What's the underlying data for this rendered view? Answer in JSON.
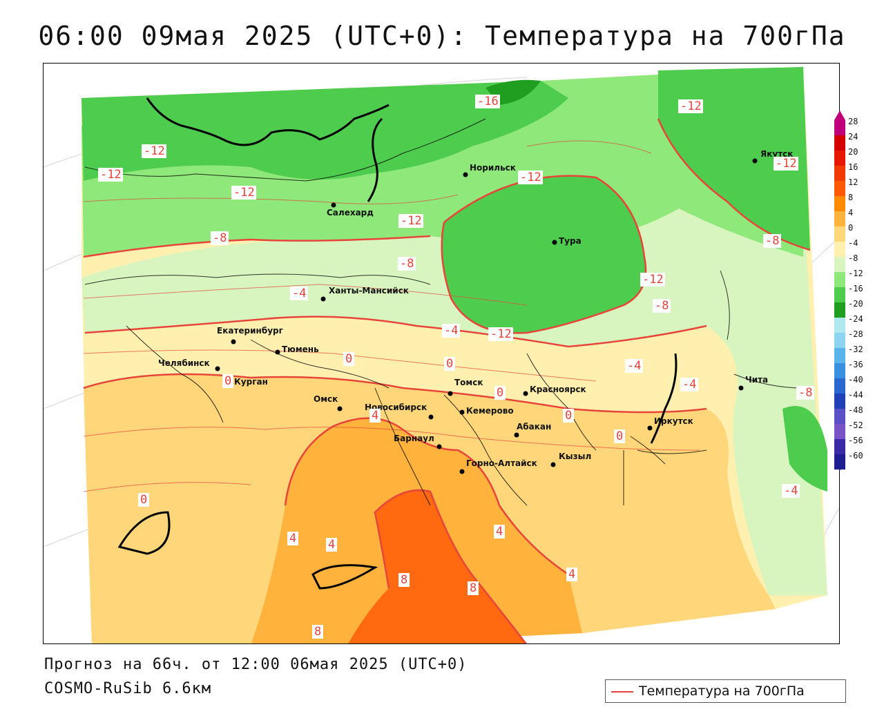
{
  "title": "06:00 09мая 2025 (UTC+0): Температура на 700гПа",
  "forecast_line": "Прогноз на 66ч. от 12:00 06мая 2025 (UTC+0)",
  "model_line": "COSMO-RuSib 6.6км",
  "legend": {
    "label": "Температура на 700гПа",
    "color": "#e8443a"
  },
  "colorbar": {
    "labels": [
      "28",
      "24",
      "20",
      "16",
      "12",
      "8",
      "4",
      "0",
      "-4",
      "-8",
      "-12",
      "-16",
      "-20",
      "-24",
      "-28",
      "-32",
      "-36",
      "-40",
      "-44",
      "-48",
      "-52",
      "-56",
      "-60"
    ],
    "colors": [
      "#c0007a",
      "#d40000",
      "#e61800",
      "#f23a00",
      "#ff5a00",
      "#ff8a00",
      "#ffb23c",
      "#ffd77a",
      "#fff0b0",
      "#d8f5c0",
      "#8ee87a",
      "#4ecc4e",
      "#1f9e1f",
      "#b0e8f0",
      "#8cd4f0",
      "#5ab4ec",
      "#3a90e0",
      "#2a68d0",
      "#2040b8",
      "#5a50c8",
      "#7a52c8",
      "#3a2aa8",
      "#1e1e90"
    ]
  },
  "cities": [
    {
      "name": "Салехард"
    },
    {
      "name": "Норильск"
    },
    {
      "name": "Тура"
    },
    {
      "name": "Якутск"
    },
    {
      "name": "Ханты-Мансийск"
    },
    {
      "name": "Екатеринбург"
    },
    {
      "name": "Тюмень"
    },
    {
      "name": "Челябинск"
    },
    {
      "name": "Курган"
    },
    {
      "name": "Омск"
    },
    {
      "name": "Новосибирск"
    },
    {
      "name": "Томск"
    },
    {
      "name": "Кемерово"
    },
    {
      "name": "Красноярск"
    },
    {
      "name": "Абакан"
    },
    {
      "name": "Барнаул"
    },
    {
      "name": "Горно-Алтайск"
    },
    {
      "name": "Кызыл"
    },
    {
      "name": "Иркутск"
    },
    {
      "name": "Чита"
    }
  ],
  "isotherm_labels": [
    "-16",
    "-12",
    "-12",
    "-12",
    "-12",
    "-12",
    "-12",
    "-12",
    "-12",
    "-12",
    "-8",
    "-8",
    "-8",
    "-8",
    "-8",
    "-4",
    "-4",
    "-4",
    "-4",
    "-4",
    "0",
    "0",
    "0",
    "0",
    "0",
    "0",
    "0",
    "4",
    "4",
    "4",
    "4",
    "4",
    "8",
    "8",
    "8"
  ]
}
